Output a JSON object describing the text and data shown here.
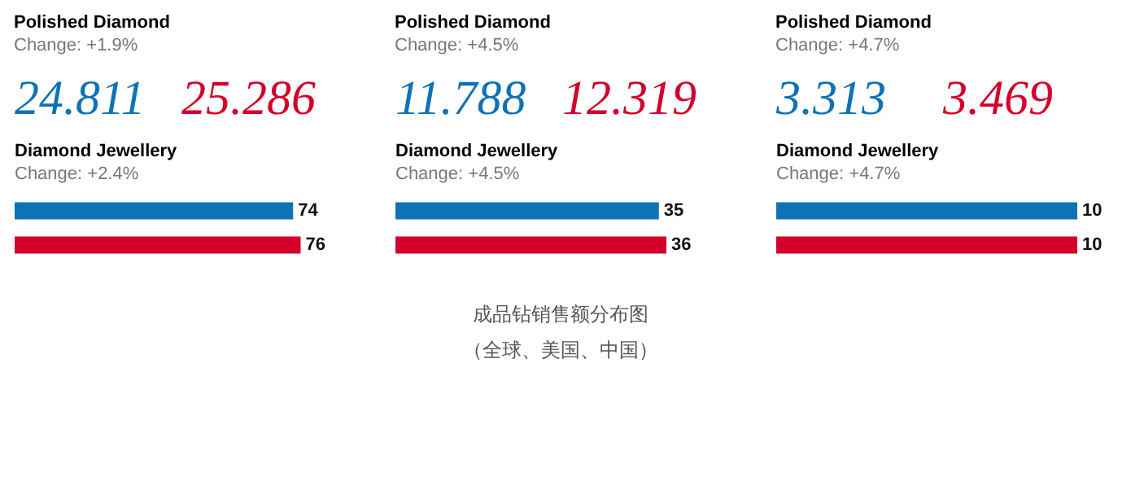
{
  "chart_data": [
    {
      "type": "other",
      "title": "Polished Diamond",
      "subtitle": "Change: +1.9%",
      "categories": [
        null,
        null
      ],
      "values": [
        24.811,
        25.286
      ],
      "colors": [
        "#0e72b5",
        "#d2002a"
      ],
      "data_labels": true
    },
    {
      "type": "bar",
      "orientation": "horizontal",
      "title": "Diamond Jewellery",
      "subtitle": "Change: +2.4%",
      "categories": [
        null,
        null
      ],
      "values": [
        74,
        76
      ],
      "colors": [
        "#0e72b5",
        "#d2002a"
      ],
      "tick_labels": false,
      "data_labels": true
    },
    {
      "type": "other",
      "title": "Polished Diamond",
      "subtitle": "Change: +4.5%",
      "categories": [
        null,
        null
      ],
      "values": [
        11.788,
        12.319
      ],
      "colors": [
        "#0e72b5",
        "#d2002a"
      ],
      "data_labels": true
    },
    {
      "type": "bar",
      "orientation": "horizontal",
      "title": "Diamond Jewellery",
      "subtitle": "Change: +4.5%",
      "categories": [
        null,
        null
      ],
      "values": [
        35,
        36
      ],
      "colors": [
        "#0e72b5",
        "#d2002a"
      ],
      "tick_labels": false,
      "data_labels": true,
      "annotations": [
        "成品钻销售额分布图",
        "（全球、美国、中国）"
      ]
    },
    {
      "type": "other",
      "title": "Polished Diamond",
      "subtitle": "Change: +4.7%",
      "categories": [
        null,
        null
      ],
      "values": [
        3.313,
        3.469
      ],
      "colors": [
        "#0e72b5",
        "#d2002a"
      ],
      "data_labels": true
    },
    {
      "type": "bar",
      "orientation": "horizontal",
      "title": "Diamond Jewellery",
      "subtitle": "Change: +4.7%",
      "categories": [
        null,
        null
      ],
      "values": [
        10,
        10
      ],
      "colors": [
        "#0e72b5",
        "#d2002a"
      ],
      "tick_labels": false,
      "data_labels": true
    }
  ]
}
